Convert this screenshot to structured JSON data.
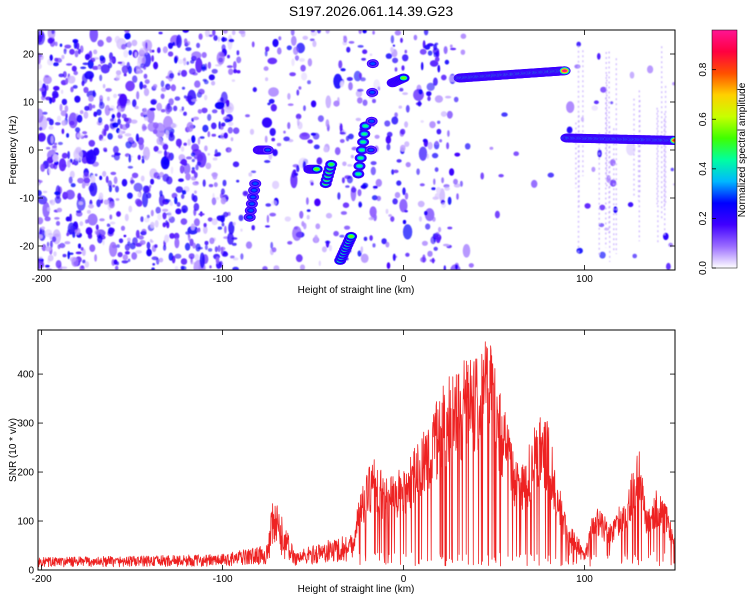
{
  "title": "S197.2026.061.14.39.G23",
  "chart_data": [
    {
      "type": "heatmap",
      "xlabel": "Height of straight line (km)",
      "ylabel": "Frequency (Hz)",
      "xlim": [
        -202,
        150
      ],
      "ylim": [
        -25,
        25
      ],
      "xticks": [
        -200,
        -100,
        0,
        100
      ],
      "yticks": [
        -20,
        -10,
        0,
        10,
        20
      ],
      "colorbar": {
        "label": "Normalized spectral amplitude",
        "range": [
          0,
          0.96
        ],
        "ticks": [
          0.0,
          0.2,
          0.4,
          0.6,
          0.8
        ],
        "colors": [
          "#ffffff",
          "#9a6cff",
          "#4000ff",
          "#0000ff",
          "#00b8ff",
          "#00ffa0",
          "#40ff00",
          "#c8ff00",
          "#ffd000",
          "#ff5000",
          "#ff0040",
          "#ff1493"
        ]
      },
      "tracks": [
        {
          "x0": -85,
          "x1": -82,
          "f0": -14,
          "f1": -7,
          "amp": 0.3
        },
        {
          "x0": -80,
          "x1": -75,
          "f0": 0,
          "f1": 0,
          "amp": 0.3
        },
        {
          "x0": -52,
          "x1": -48,
          "f0": -4,
          "f1": -4,
          "amp": 0.55
        },
        {
          "x0": -43,
          "x1": -40,
          "f0": -7,
          "f1": -3,
          "amp": 0.5
        },
        {
          "x0": -35,
          "x1": -29,
          "f0": -23,
          "f1": -18,
          "amp": 0.55
        },
        {
          "x0": -25,
          "x1": -21,
          "f0": -5,
          "f1": 5,
          "amp": 0.45
        },
        {
          "x0": -18,
          "x1": -17,
          "f0": 0,
          "f1": 18,
          "amp": 0.3
        },
        {
          "x0": -6,
          "x1": 0,
          "f0": 14,
          "f1": 15,
          "amp": 0.55
        },
        {
          "x0": 31,
          "x1": 89,
          "f0": 15,
          "f1": 16.5,
          "amp": 0.95
        },
        {
          "x0": 90,
          "x1": 150,
          "f0": 2.5,
          "f1": 2,
          "amp": 0.85
        }
      ]
    },
    {
      "type": "line",
      "xlabel": "Height of straight line (km)",
      "ylabel": "SNR (10 * v/v)",
      "xlim": [
        -202,
        150
      ],
      "ylim": [
        0,
        490
      ],
      "xticks": [
        -200,
        -100,
        0,
        100
      ],
      "yticks": [
        0,
        100,
        200,
        300,
        400
      ],
      "color": "#ee2222",
      "series": [
        {
          "name": "SNR",
          "points": [
            [
              -202,
              20
            ],
            [
              -150,
              22
            ],
            [
              -100,
              25
            ],
            [
              -75,
              40
            ],
            [
              -72,
              120
            ],
            [
              -60,
              30
            ],
            [
              -28,
              60
            ],
            [
              -25,
              140
            ],
            [
              -17,
              220
            ],
            [
              -10,
              180
            ],
            [
              0,
              200
            ],
            [
              7,
              250
            ],
            [
              15,
              300
            ],
            [
              22,
              360
            ],
            [
              30,
              400
            ],
            [
              40,
              440
            ],
            [
              47,
              470
            ],
            [
              52,
              380
            ],
            [
              60,
              250
            ],
            [
              65,
              195
            ],
            [
              70,
              250
            ],
            [
              75,
              310
            ],
            [
              80,
              290
            ],
            [
              85,
              180
            ],
            [
              90,
              100
            ],
            [
              97,
              60
            ],
            [
              100,
              30
            ],
            [
              105,
              130
            ],
            [
              110,
              110
            ],
            [
              115,
              90
            ],
            [
              120,
              130
            ],
            [
              125,
              170
            ],
            [
              130,
              250
            ],
            [
              134,
              120
            ],
            [
              140,
              160
            ],
            [
              145,
              130
            ],
            [
              150,
              60
            ]
          ]
        }
      ]
    }
  ]
}
